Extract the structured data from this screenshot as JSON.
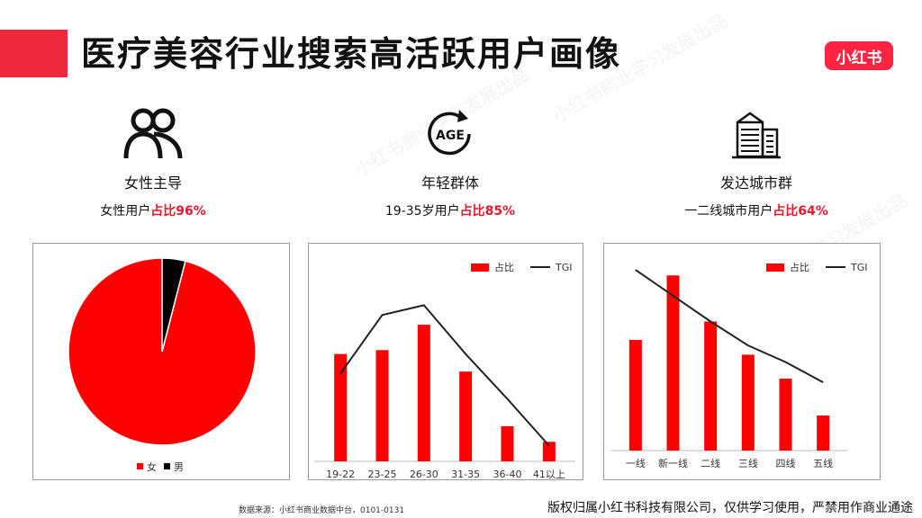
{
  "page": {
    "title": "医疗美容行业搜索高活跃用户画像",
    "logo_text": "小红书",
    "watermark": "小红书商业学习发展出品",
    "footer_source": "数据来源：小红书商业数据中台，0101-0131",
    "footer_copyright": "版权归属小红书科技有限公司，仅供学习使用，严禁用作商业通途"
  },
  "features": [
    {
      "icon": "people-icon",
      "name": "女性主导",
      "stat_prefix": "女性用户",
      "stat_highlight": "占比96%"
    },
    {
      "icon": "age-icon",
      "icon_text": "AGE",
      "name": "年轻群体",
      "stat_prefix": "19-35岁用户",
      "stat_highlight": "占比85%"
    },
    {
      "icon": "buildings-icon",
      "name": "发达城市群",
      "stat_prefix": "一二线城市用户",
      "stat_highlight": "占比64%"
    }
  ],
  "colors": {
    "accent": "#f0283c",
    "bar": "#ff0000",
    "line": "#222222",
    "male": "#000000"
  },
  "chart_data": [
    {
      "type": "pie",
      "categories": [
        "女",
        "男"
      ],
      "values": [
        96,
        4
      ],
      "colors": [
        "#ff0000",
        "#000000"
      ],
      "legend_position": "bottom"
    },
    {
      "type": "bar",
      "categories": [
        "19-22",
        "23-25",
        "26-30",
        "31-35",
        "36-40",
        "41以上"
      ],
      "series": [
        {
          "name": "占比",
          "type": "bar",
          "values": [
            55,
            57,
            70,
            46,
            18,
            10
          ]
        },
        {
          "name": "TGI",
          "type": "line",
          "values": [
            45,
            75,
            80,
            55,
            32,
            8
          ]
        }
      ],
      "ylim": [
        0,
        100
      ],
      "legend_position": "top-right"
    },
    {
      "type": "bar",
      "categories": [
        "一线",
        "新一线",
        "二线",
        "三线",
        "四线",
        "五线"
      ],
      "series": [
        {
          "name": "占比",
          "type": "bar",
          "values": [
            60,
            95,
            70,
            52,
            39,
            19
          ]
        },
        {
          "name": "TGI",
          "type": "line",
          "values": [
            98,
            84,
            70,
            57,
            48,
            37
          ]
        }
      ],
      "ylim": [
        0,
        100
      ],
      "legend_position": "top-right"
    }
  ]
}
